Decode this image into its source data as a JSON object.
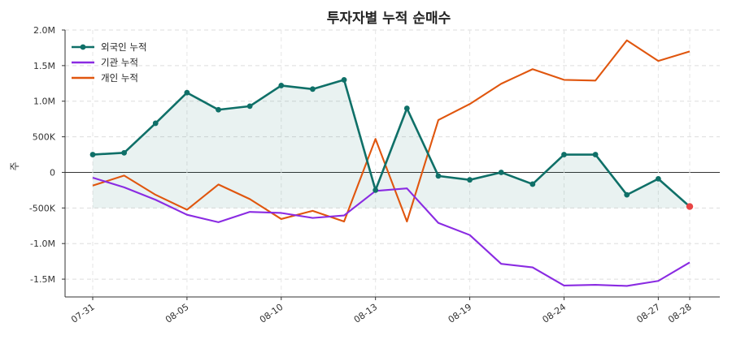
{
  "chart_data": {
    "type": "line",
    "title": "투자자별 누적 순매수",
    "ylabel": "주",
    "xlabel": "",
    "ylim": [
      -1750000,
      2000000
    ],
    "yticks": [
      {
        "value": 2000000,
        "label": "2.0M"
      },
      {
        "value": 1500000,
        "label": "1.5M"
      },
      {
        "value": 1000000,
        "label": "1.0M"
      },
      {
        "value": 500000,
        "label": "500K"
      },
      {
        "value": 0,
        "label": "0"
      },
      {
        "value": -500000,
        "label": "-500K"
      },
      {
        "value": -1000000,
        "label": "-1.0M"
      },
      {
        "value": -1500000,
        "label": "-1.5M"
      }
    ],
    "xticks": [
      {
        "index": 0,
        "label": "07-31"
      },
      {
        "index": 3,
        "label": "08-05"
      },
      {
        "index": 6,
        "label": "08-10"
      },
      {
        "index": 9,
        "label": "08-13"
      },
      {
        "index": 12,
        "label": "08-19"
      },
      {
        "index": 15,
        "label": "08-24"
      },
      {
        "index": 18,
        "label": "08-27"
      },
      {
        "index": 19,
        "label": "08-28"
      }
    ],
    "grid": true,
    "legend_position": "top-left",
    "fill_baseline": -500000,
    "series": [
      {
        "name": "외국인 누적",
        "color": "#0f7068",
        "markers": true,
        "fill": true,
        "values": [
          250000,
          275000,
          690000,
          1120000,
          880000,
          930000,
          1220000,
          1170000,
          1300000,
          -250000,
          900000,
          -50000,
          -105000,
          0,
          -165000,
          250000,
          250000,
          -315000,
          -90000,
          -480000
        ]
      },
      {
        "name": "기관 누적",
        "color": "#8a2be2",
        "markers": false,
        "fill": false,
        "values": [
          -75000,
          -210000,
          -385000,
          -595000,
          -700000,
          -555000,
          -570000,
          -640000,
          -605000,
          -260000,
          -225000,
          -710000,
          -880000,
          -1285000,
          -1335000,
          -1590000,
          -1580000,
          -1595000,
          -1525000,
          -1265000
        ]
      },
      {
        "name": "개인 누적",
        "color": "#e0560e",
        "markers": false,
        "fill": false,
        "values": [
          -185000,
          -45000,
          -315000,
          -525000,
          -170000,
          -375000,
          -655000,
          -540000,
          -690000,
          470000,
          -690000,
          735000,
          960000,
          1245000,
          1450000,
          1300000,
          1290000,
          1855000,
          1565000,
          1700000
        ]
      }
    ]
  }
}
